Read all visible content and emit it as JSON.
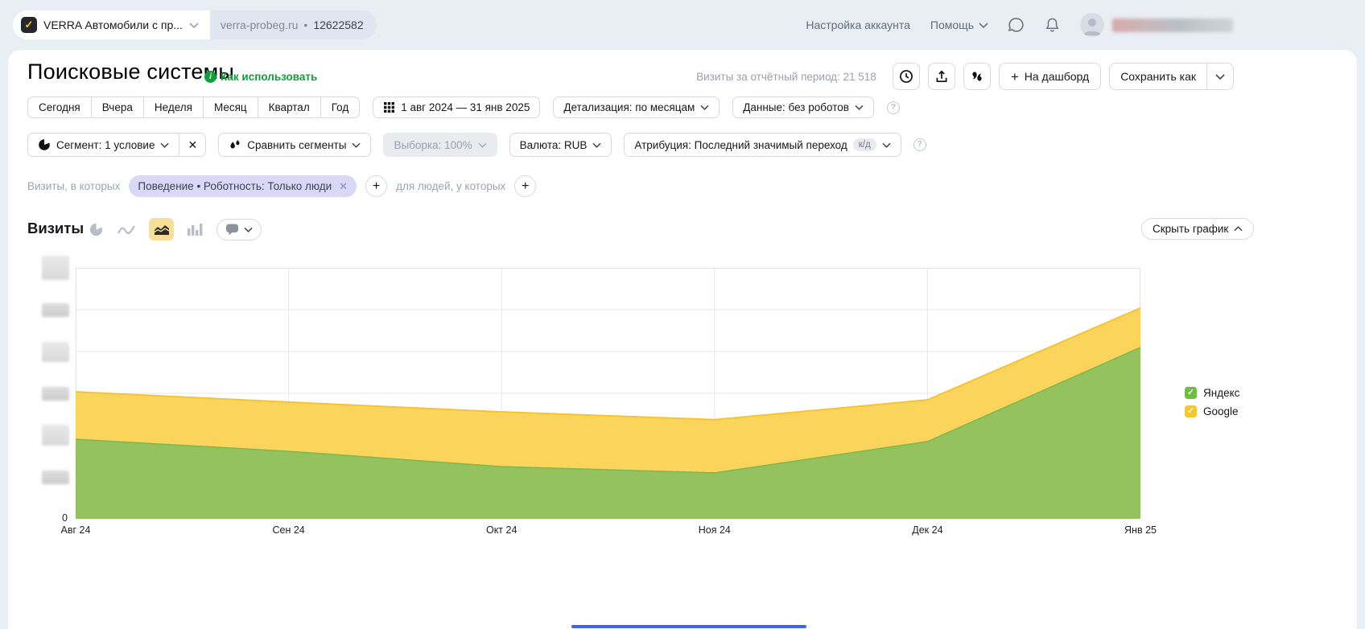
{
  "glyphs": {
    "plus": "+",
    "close": "✕",
    "check": "✓",
    "question": "?",
    "dot": "•"
  },
  "topbar": {
    "counter_name": "VERRA Автомобили с пр...",
    "domain": "verra-probeg.ru",
    "counter_id": "12622582",
    "account_settings": "Настройка аккаунта",
    "help": "Помощь"
  },
  "header": {
    "title": "Поисковые системы",
    "how_to_use": "Как использовать",
    "visits_summary": "Визиты за отчётный период: 21 518",
    "dashboard_button": "На дашборд",
    "save_as_button": "Сохранить как"
  },
  "period_tabs": [
    "Сегодня",
    "Вчера",
    "Неделя",
    "Месяц",
    "Квартал",
    "Год"
  ],
  "filters": {
    "date_range": "1 авг 2024 — 31 янв 2025",
    "granularity": "Детализация: по месяцам",
    "data_mode": "Данные: без роботов",
    "segment": "Сегмент: 1 условие",
    "compare_segments": "Сравнить сегменты",
    "sampling": "Выборка: 100%",
    "currency": "Валюта: RUB",
    "attribution": "Атрибуция: Последний значимый переход",
    "attribution_badge": "к/д"
  },
  "segment_bar": {
    "visits_condition_label": "Визиты, в которых",
    "active_segment_chip": "Поведение • Роботность: Только люди",
    "people_condition_label": "для людей, у которых"
  },
  "chart_header": {
    "metric_title": "Визиты",
    "hide_chart": "Скрыть график"
  },
  "chart_data": {
    "type": "area",
    "stacked": true,
    "title": "Визиты",
    "x": [
      "Авг 24",
      "Сен 24",
      "Окт 24",
      "Ноя 24",
      "Дек 24",
      "Янв 25"
    ],
    "series": [
      {
        "name": "Яндекс",
        "values": [
          31.7,
          26.9,
          20.8,
          18.3,
          30.8,
          68.3
        ],
        "color": "#94c25f",
        "edge": "#7fb64e",
        "legend_color": "#6fbe44"
      },
      {
        "name": "Google",
        "values": [
          18.9,
          19.6,
          21.8,
          21.2,
          16.6,
          15.7
        ],
        "color": "#fbd45c",
        "edge": "#f5c335",
        "legend_color": "#f6c82f"
      }
    ],
    "values_scale": "relative_percent_of_plot_height",
    "y_axis": {
      "origin_label": "0",
      "ticks_redacted": true,
      "gridline_count": 6
    },
    "legend_position": "right",
    "grid": true
  }
}
